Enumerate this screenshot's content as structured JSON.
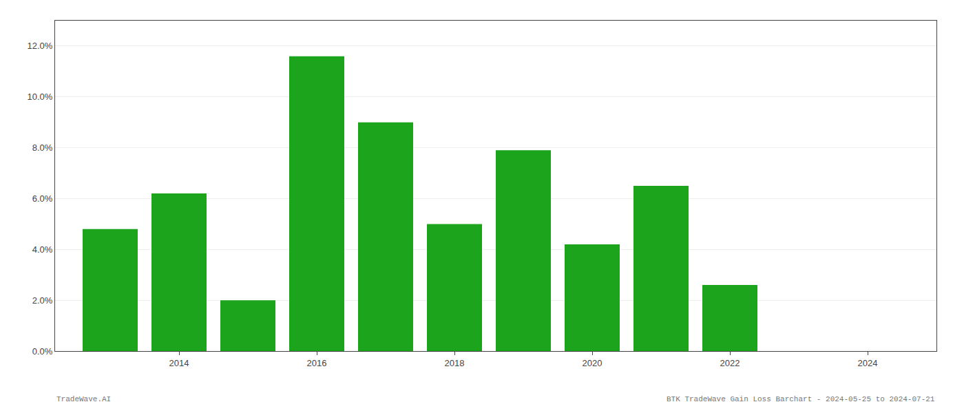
{
  "chart_data": {
    "type": "bar",
    "x": [
      2013,
      2014,
      2015,
      2016,
      2017,
      2018,
      2019,
      2020,
      2021,
      2022,
      2023
    ],
    "values": [
      0.048,
      0.062,
      0.02,
      0.116,
      0.09,
      0.05,
      0.079,
      0.042,
      0.065,
      0.026,
      0.0
    ],
    "color": "#1ca51c",
    "xlim": [
      2012.2,
      2025.0
    ],
    "xticks": [
      2014,
      2016,
      2018,
      2020,
      2022,
      2024
    ],
    "ylim": [
      0,
      0.13
    ],
    "yticks": [
      {
        "value": 0.0,
        "label": "0.0%"
      },
      {
        "value": 0.02,
        "label": "2.0%"
      },
      {
        "value": 0.04,
        "label": "4.0%"
      },
      {
        "value": 0.06,
        "label": "6.0%"
      },
      {
        "value": 0.08,
        "label": "8.0%"
      },
      {
        "value": 0.1,
        "label": "10.0%"
      },
      {
        "value": 0.12,
        "label": "12.0%"
      }
    ],
    "grid": true,
    "annotations": [
      "TradeWave.AI",
      "BTK TradeWave Gain Loss Barchart - 2024-05-25 to 2024-07-21"
    ]
  }
}
